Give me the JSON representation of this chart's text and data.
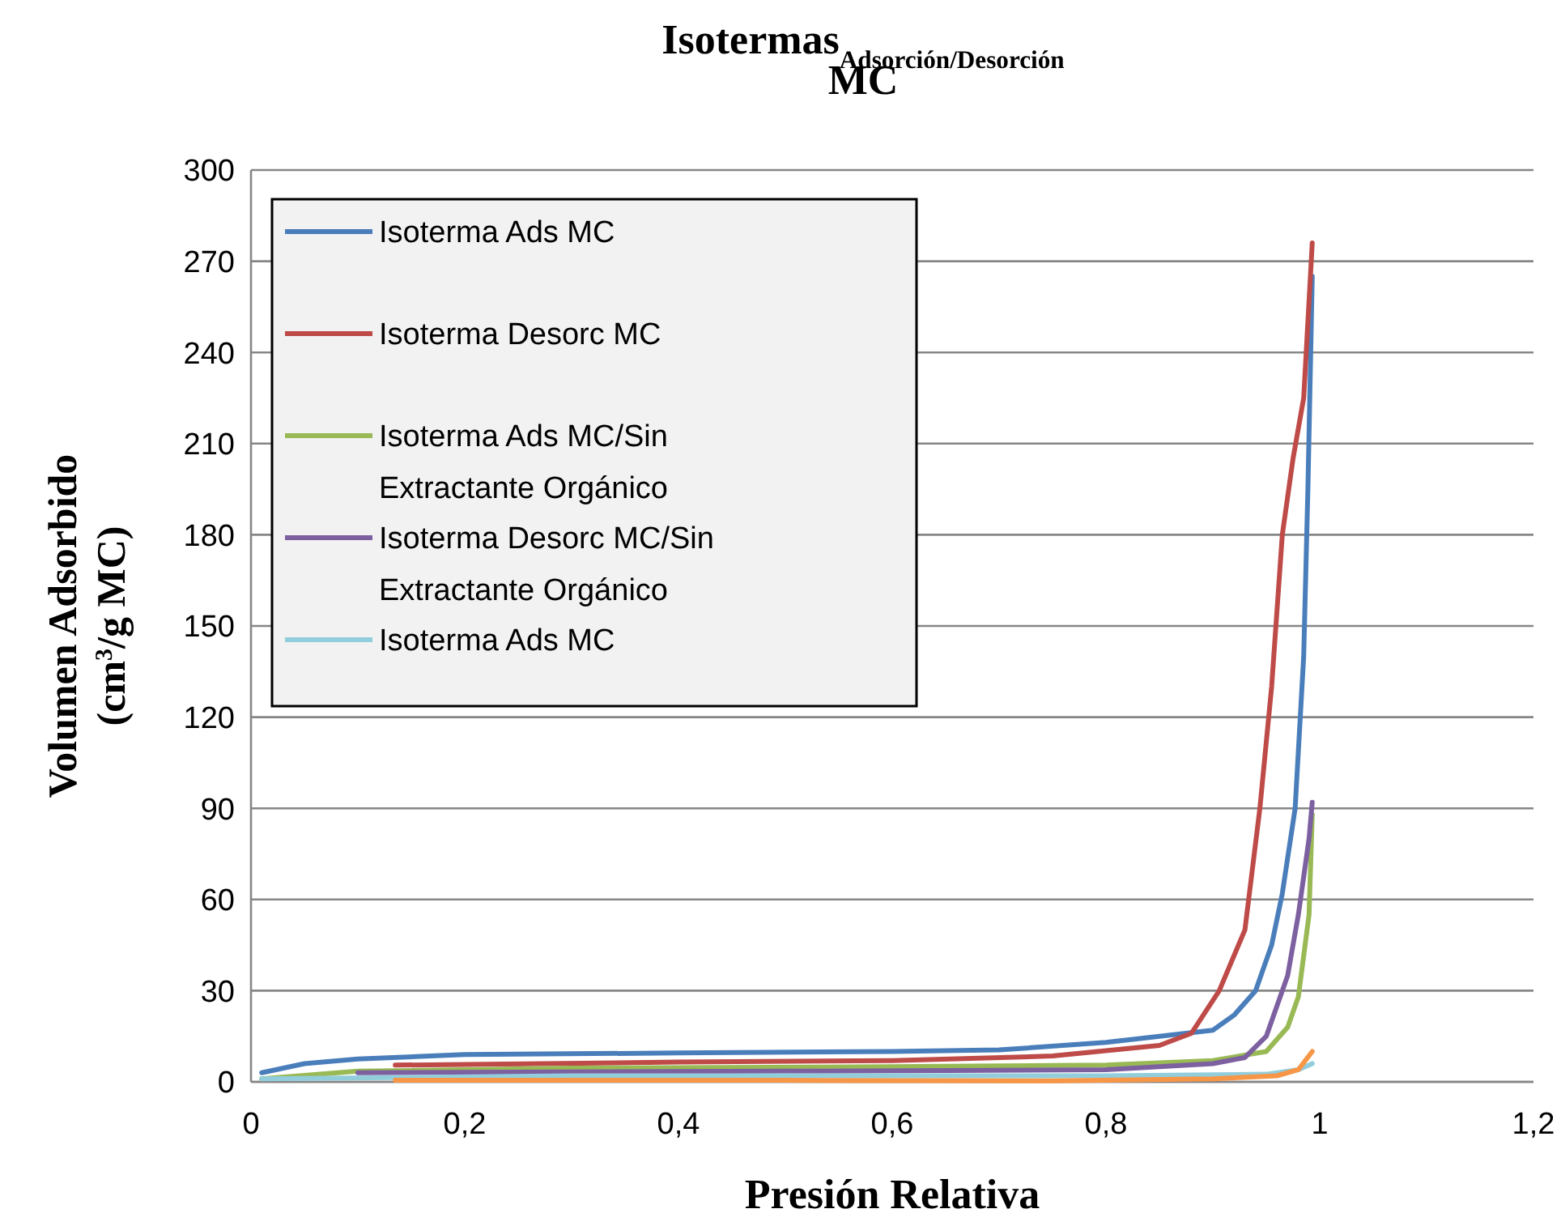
{
  "chart_data": {
    "type": "line",
    "title": "Isotermas$_{Adsorción/Desorción}$\nMC",
    "xlabel": "Presión Relativa",
    "ylabel": "Volumen  Adsorbido\n(cm$^{3}$/g MC)",
    "xlim": [
      0,
      1.2
    ],
    "ylim": [
      0,
      300
    ],
    "xticks": [
      0,
      {
        "value": 0.2,
        "label": "0,2"
      },
      {
        "value": 0.4,
        "label": "0,4"
      },
      {
        "value": 0.6,
        "label": "0,6"
      },
      {
        "value": 0.8,
        "label": "0,8"
      },
      1,
      {
        "value": 1.2,
        "label": "1,2"
      }
    ],
    "yticks": [
      0,
      30,
      60,
      90,
      120,
      150,
      180,
      210,
      240,
      270,
      300
    ],
    "grid": "y",
    "legend": "top left",
    "marker": "none",
    "line_style": "solid",
    "series": [
      {
        "name": "Isoterma Ads MC",
        "color": "#4a7ebb",
        "x": [
          0.01,
          0.05,
          0.1,
          0.2,
          0.4,
          0.6,
          0.7,
          0.8,
          0.85,
          0.9,
          0.92,
          0.94,
          0.955,
          0.965,
          0.977,
          0.985,
          0.989,
          0.993
        ],
        "values": [
          3,
          6,
          7.5,
          9,
          9.5,
          10,
          10.5,
          13,
          15,
          17,
          22,
          30,
          45,
          62,
          90,
          140,
          196,
          265
        ]
      },
      {
        "name": "Isoterma Desorc MC",
        "color": "#be4b48",
        "x": [
          0.135,
          0.4,
          0.6,
          0.75,
          0.85,
          0.88,
          0.906,
          0.93,
          0.944,
          0.955,
          0.965,
          0.975,
          0.985,
          0.993
        ],
        "values": [
          5.5,
          6.5,
          7,
          8.5,
          12,
          16,
          30,
          50,
          90,
          130,
          180,
          205,
          225,
          276
        ]
      },
      {
        "name": "Isoterma Ads MC/Sin Extractante Orgánico",
        "color": "#98b954",
        "x": [
          0.01,
          0.1,
          0.3,
          0.6,
          0.8,
          0.9,
          0.95,
          0.97,
          0.98,
          0.99,
          0.993
        ],
        "values": [
          1,
          3.5,
          4.5,
          5,
          5.5,
          7,
          10,
          18,
          28,
          55,
          88
        ]
      },
      {
        "name": "Isoterma Desorc MC/Sin Extractante Orgánico",
        "color": "#7d60a0",
        "x": [
          0.1,
          0.5,
          0.8,
          0.9,
          0.93,
          0.95,
          0.97,
          0.98,
          0.99,
          0.993
        ],
        "values": [
          3,
          3.5,
          4,
          6,
          8,
          15,
          35,
          55,
          80,
          92
        ]
      },
      {
        "name": "Isoterma Ads MC",
        "color": "#92cddc",
        "x": [
          0.01,
          0.3,
          0.8,
          0.95,
          0.98,
          0.993
        ],
        "values": [
          1,
          2,
          2,
          2.5,
          4,
          6
        ]
      },
      {
        "color": "#f79646",
        "x": [
          0.135,
          0.5,
          0.75,
          0.9,
          0.96,
          0.98,
          0.993
        ],
        "values": [
          0.5,
          0.5,
          0.3,
          1,
          2,
          4,
          10
        ]
      }
    ]
  }
}
